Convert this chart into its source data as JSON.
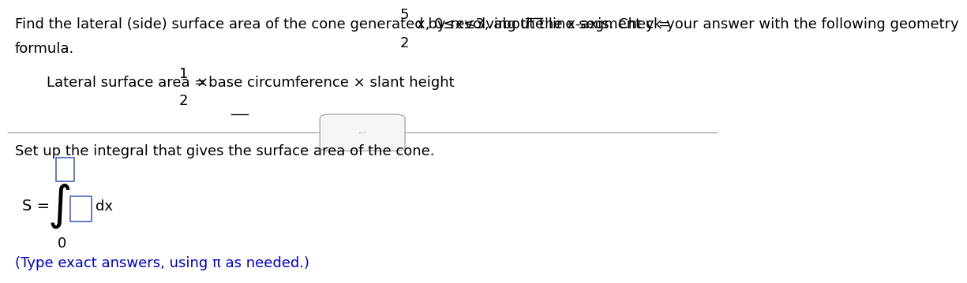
{
  "bg_color": "#ffffff",
  "text_color": "#000000",
  "blue_color": "#0000cc",
  "gray_color": "#aaaaaa",
  "box_border_color": "#4466bb",
  "line1_prefix": "Find the lateral (side) surface area of the cone generated by revolving the line segment y = ",
  "line1_frac_num": "5",
  "line1_frac_den": "2",
  "line1_suffix": "x, 0≤x≤3, about the x-axis. Check your answer with the following geometry",
  "line2": "formula.",
  "lat_prefix": "Lateral surface area = ",
  "lat_frac_num": "1",
  "lat_frac_den": "2",
  "lat_suffix": "×base circumference × slant height",
  "divider_text": "···",
  "setup_text": "Set up the integral that gives the surface area of the cone.",
  "S_label": "S = ",
  "integral_lower": "0",
  "dx_text": "dx",
  "note_text": "(Type exact answers, using π as needed.)",
  "font_size_main": 13,
  "font_size_note": 13
}
